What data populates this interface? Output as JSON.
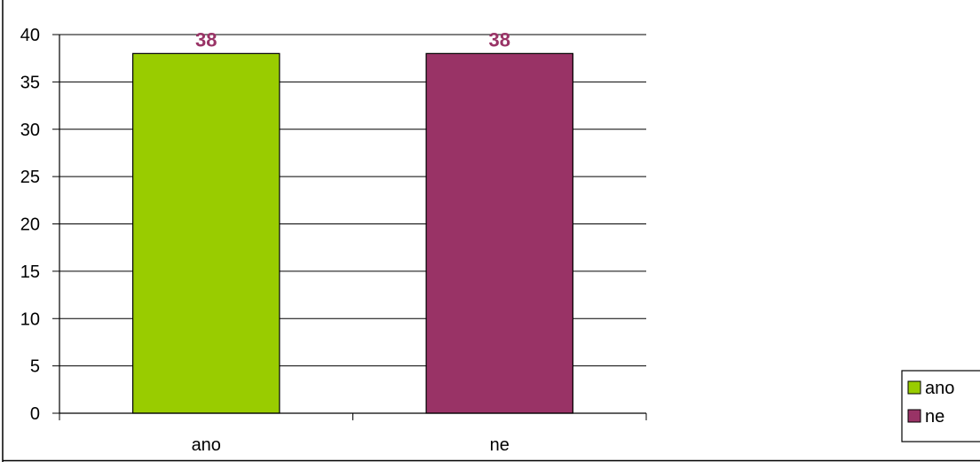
{
  "chart_data": {
    "type": "bar",
    "categories": [
      "ano",
      "ne"
    ],
    "values": [
      38,
      38
    ],
    "data_labels": [
      "38",
      "38"
    ],
    "colors": [
      "#99cc00",
      "#993366"
    ],
    "data_label_color": "#993366",
    "ylim": [
      0,
      40
    ],
    "y_ticks": [
      0,
      5,
      10,
      15,
      20,
      25,
      30,
      35,
      40
    ],
    "grid": true,
    "legend": {
      "position": "right",
      "entries": [
        "ano",
        "ne"
      ]
    }
  }
}
